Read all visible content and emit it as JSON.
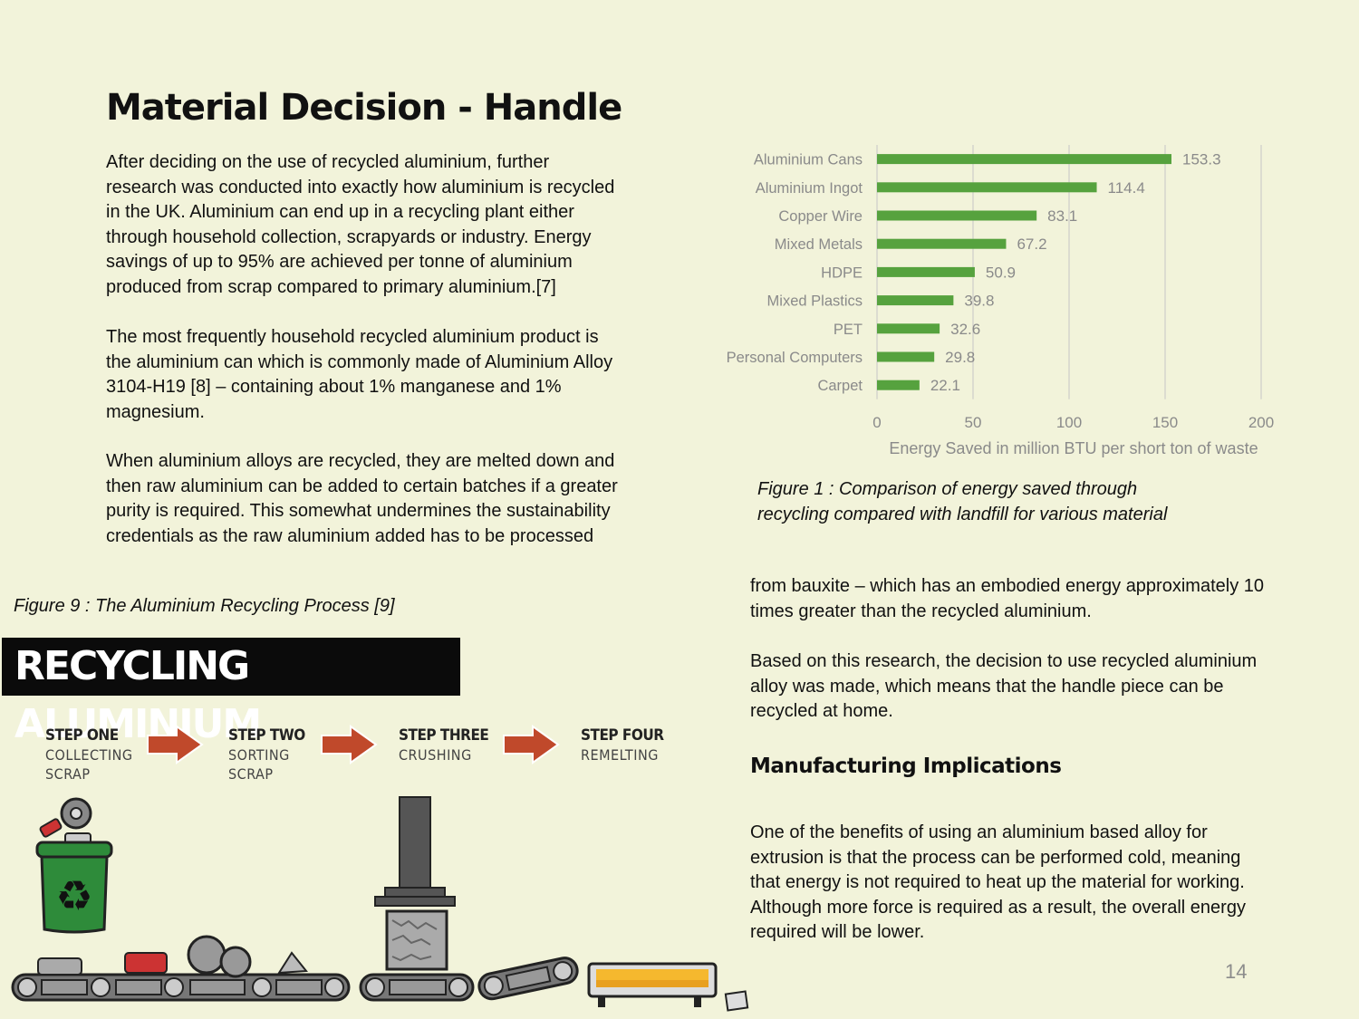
{
  "title": "Material Decision - Handle",
  "left_paragraphs": [
    "After deciding on the use of recycled aluminium, further\nresearch was conducted into exactly how aluminium is recycled\nin the UK. Aluminium can end up in a recycling plant either\nthrough household collection, scrapyards or industry. Energy\nsavings of up to 95% are achieved per tonne of aluminium\nproduced from scrap compared to primary aluminium.[7]",
    "The most frequently household recycled aluminium product is\nthe aluminium can which is commonly made of Aluminium Alloy\n3104-H19 [8] – containing about 1% manganese and 1%\nmagnesium.",
    "When aluminium alloys are recycled, they are melted down and\nthen raw aluminium can be added to certain batches if a greater\npurity is required. This somewhat undermines the sustainability\ncredentials as the raw aluminium added has to be processed"
  ],
  "right_paragraphs": [
    "from bauxite – which has an embodied energy approximately 10\ntimes greater than the recycled aluminium.",
    "Based on this research, the decision to use recycled aluminium\nalloy was made, which means that the handle piece can be\nrecycled at home.",
    "One of the benefits of using an aluminium based alloy for\nextrusion is that the process can be performed cold, meaning\nthat energy is not required to heat up the material for working.\nAlthough more force is required as a result, the overall energy\nrequired will be lower."
  ],
  "sub_heading": "Manufacturing Implications",
  "figure1_caption": "Figure 1 : Comparison of energy saved through\nrecycling compared with landfill for various material",
  "figure9_caption": "Figure 9 : The Aluminium Recycling Process [9]",
  "page_number": "14",
  "infographic": {
    "banner": "RECYCLING ALUMINIUM",
    "steps": [
      {
        "title": "STEP ONE",
        "sub": "COLLECTING\nSCRAP"
      },
      {
        "title": "STEP TWO",
        "sub": "SORTING\nSCRAP"
      },
      {
        "title": "STEP THREE",
        "sub": "CRUSHING"
      },
      {
        "title": "STEP FOUR",
        "sub": "REMELTING"
      }
    ],
    "colors": {
      "arrow": "#c0492b",
      "bin": "#2e8b3a",
      "tray": "#f5b82e"
    }
  },
  "chart_data": {
    "type": "bar",
    "orientation": "horizontal",
    "categories": [
      "Aluminium Cans",
      "Aluminium Ingot",
      "Copper Wire",
      "Mixed Metals",
      "HDPE",
      "Mixed Plastics",
      "PET",
      "Personal Computers",
      "Carpet"
    ],
    "values": [
      153.3,
      114.4,
      83.1,
      67.2,
      50.9,
      39.8,
      32.6,
      29.8,
      22.1
    ],
    "value_labels": [
      "153.3",
      "114.4",
      "83.1",
      "67.2",
      "50.9",
      "39.8",
      "32.6",
      "29.8",
      "22.1"
    ],
    "xlim": [
      0,
      200
    ],
    "xticks": [
      0,
      50,
      100,
      150,
      200
    ],
    "xlabel": "Energy Saved in million BTU per short ton of waste",
    "grid": true,
    "bar_color": "#56a23e"
  }
}
